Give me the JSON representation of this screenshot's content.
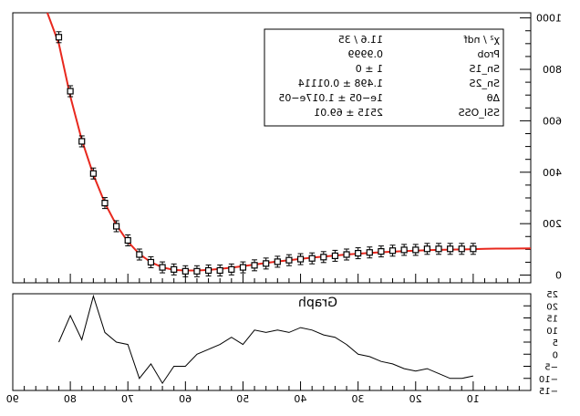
{
  "chart_data": [
    {
      "type": "scatter",
      "title": "",
      "xlabel": "",
      "ylabel": "",
      "mirrored": true,
      "xlim": [
        0,
        90
      ],
      "ylim": [
        -30,
        1020
      ],
      "y_ticks": [
        0,
        200,
        400,
        600,
        800,
        1000
      ],
      "y_tick_labels": [
        "0",
        "200",
        "400",
        "600",
        "800",
        "1000"
      ],
      "series": [
        {
          "kind": "points-with-errors",
          "color": "#000000",
          "x": [
            82,
            80,
            78,
            76,
            74,
            72,
            70,
            68,
            66,
            64,
            62,
            60,
            58,
            56,
            54,
            52,
            50,
            48,
            46,
            44,
            42,
            40,
            38,
            36,
            34,
            32,
            30,
            28,
            26,
            24,
            22,
            20,
            18,
            16,
            14,
            12,
            10
          ],
          "y": [
            925,
            715,
            520,
            395,
            280,
            190,
            135,
            80,
            50,
            30,
            22,
            15,
            15,
            18,
            18,
            22,
            30,
            38,
            45,
            52,
            58,
            62,
            65,
            70,
            75,
            80,
            85,
            88,
            92,
            95,
            98,
            98,
            102,
            102,
            102,
            102,
            102
          ]
        },
        {
          "kind": "fit-curve",
          "color": "#e8281e",
          "x": [
            84,
            82,
            80,
            78,
            76,
            74,
            72,
            70,
            68,
            66,
            64,
            62,
            60,
            58,
            56,
            54,
            52,
            50,
            48,
            46,
            44,
            42,
            40,
            38,
            36,
            34,
            32,
            30,
            28,
            26,
            24,
            22,
            20,
            18,
            16,
            14,
            12,
            10,
            8,
            6,
            4,
            0
          ],
          "y": [
            1100,
            900,
            695,
            525,
            390,
            280,
            195,
            130,
            82,
            50,
            30,
            20,
            18,
            18,
            20,
            24,
            29,
            35,
            41,
            47,
            53,
            58,
            63,
            68,
            72,
            76,
            80,
            83,
            86,
            89,
            91,
            93,
            95,
            97,
            98,
            99,
            100,
            101,
            102,
            103,
            103,
            104
          ]
        }
      ]
    },
    {
      "type": "line",
      "title": "Graph",
      "xlabel": "",
      "ylabel": "",
      "mirrored": true,
      "xlim": [
        0,
        90
      ],
      "ylim": [
        -15,
        25
      ],
      "x_ticks": [
        10,
        20,
        30,
        40,
        50,
        60,
        70,
        80,
        90
      ],
      "x_tick_labels": [
        "10",
        "20",
        "30",
        "40",
        "50",
        "60",
        "70",
        "80",
        "90"
      ],
      "y_ticks": [
        -15,
        -10,
        -5,
        0,
        5,
        10,
        15,
        20,
        25
      ],
      "y_tick_labels": [
        "−15",
        "−10",
        "−5",
        "0",
        "5",
        "10",
        "15",
        "20",
        "25"
      ],
      "series": [
        {
          "color": "#000000",
          "x": [
            82,
            80,
            78,
            76,
            74,
            72,
            70,
            68,
            66,
            64,
            62,
            60,
            58,
            56,
            54,
            52,
            50,
            48,
            46,
            44,
            42,
            40,
            38,
            36,
            34,
            32,
            30,
            28,
            26,
            24,
            22,
            20,
            18,
            16,
            14,
            12,
            10
          ],
          "y": [
            5,
            16,
            6,
            24,
            9,
            5,
            4,
            -10,
            -4,
            -12,
            -5,
            -5,
            0,
            2,
            4,
            7,
            4,
            10,
            9,
            10,
            9,
            11,
            10,
            8,
            7,
            4,
            0,
            -1,
            -3,
            -4,
            -6,
            -7,
            -6,
            -8,
            -10,
            -10,
            -9
          ]
        }
      ]
    }
  ],
  "stats_box": {
    "rows": [
      {
        "name": "χ² / ndf",
        "value": "11.6 / 35"
      },
      {
        "name": "Prob",
        "value": "0.9999"
      },
      {
        "name": "Sn_1S",
        "value": "1 ±  0"
      },
      {
        "name": "Sn_2S",
        "value": "1.498 ± 0.01114"
      },
      {
        "name": "Δθ",
        "value": "1e−05 ± 1.017e−05"
      },
      {
        "name": "SSI_OSS",
        "value": "2515 ± 69.01"
      }
    ]
  }
}
